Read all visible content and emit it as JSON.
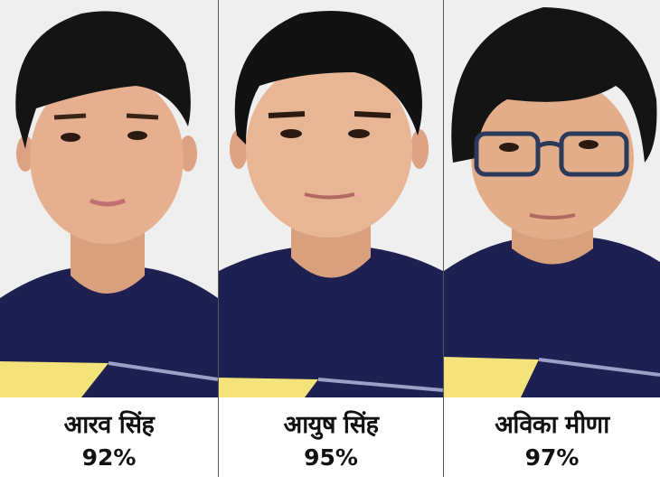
{
  "students": [
    {
      "name": "आरव सिंह",
      "score": "92%",
      "glasses": false
    },
    {
      "name": "आयुष सिंह",
      "score": "95%",
      "glasses": false
    },
    {
      "name": "अविका मीणा",
      "score": "97%",
      "glasses": true
    }
  ],
  "colors": {
    "shirt": "#1d2050",
    "stripe": "#f3e37a",
    "background": "#eeeeee",
    "skin": "#e4ad8a",
    "hair": "#141414"
  }
}
